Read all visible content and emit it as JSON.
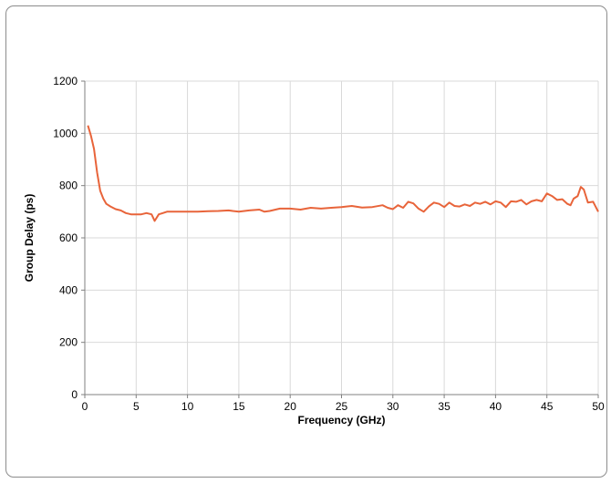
{
  "chart_data": {
    "type": "line",
    "title": "",
    "xlabel": "Frequency (GHz)",
    "ylabel": "Group Delay (ps)",
    "xlim": [
      0,
      50
    ],
    "ylim": [
      0,
      1200
    ],
    "x_ticks": [
      0,
      5,
      10,
      15,
      20,
      25,
      30,
      35,
      40,
      45,
      50
    ],
    "y_ticks": [
      0,
      200,
      400,
      600,
      800,
      1000,
      1200
    ],
    "grid": true,
    "legend": "none",
    "series": [
      {
        "color": "#e8643a",
        "x": [
          0.3,
          0.6,
          0.9,
          1.2,
          1.5,
          1.8,
          2.1,
          2.5,
          3.0,
          3.5,
          4.0,
          4.5,
          5.0,
          5.5,
          6.0,
          6.5,
          6.8,
          7.2,
          7.6,
          8.0,
          9.0,
          10.0,
          11.0,
          12.0,
          13.0,
          14.0,
          15.0,
          16.0,
          17.0,
          17.5,
          18.0,
          19.0,
          20.0,
          21.0,
          22.0,
          23.0,
          24.0,
          25.0,
          26.0,
          27.0,
          28.0,
          29.0,
          29.5,
          30.0,
          30.5,
          31.0,
          31.5,
          32.0,
          32.5,
          33.0,
          33.5,
          34.0,
          34.5,
          35.0,
          35.5,
          36.0,
          36.5,
          37.0,
          37.5,
          38.0,
          38.5,
          39.0,
          39.5,
          40.0,
          40.5,
          41.0,
          41.5,
          42.0,
          42.5,
          43.0,
          43.5,
          44.0,
          44.5,
          45.0,
          45.5,
          46.0,
          46.5,
          47.0,
          47.3,
          47.6,
          48.0,
          48.3,
          48.6,
          49.0,
          49.5,
          50.0
        ],
        "y": [
          1030,
          990,
          940,
          850,
          780,
          750,
          730,
          720,
          710,
          705,
          695,
          690,
          690,
          690,
          695,
          690,
          665,
          690,
          695,
          700,
          700,
          700,
          700,
          702,
          703,
          705,
          700,
          705,
          708,
          700,
          703,
          712,
          712,
          708,
          715,
          712,
          715,
          718,
          722,
          716,
          718,
          725,
          715,
          710,
          725,
          715,
          738,
          732,
          712,
          700,
          720,
          735,
          730,
          718,
          735,
          722,
          720,
          728,
          722,
          735,
          730,
          738,
          728,
          740,
          735,
          718,
          740,
          738,
          745,
          728,
          740,
          745,
          740,
          770,
          760,
          745,
          748,
          730,
          725,
          750,
          760,
          795,
          785,
          735,
          738,
          700
        ]
      }
    ]
  }
}
